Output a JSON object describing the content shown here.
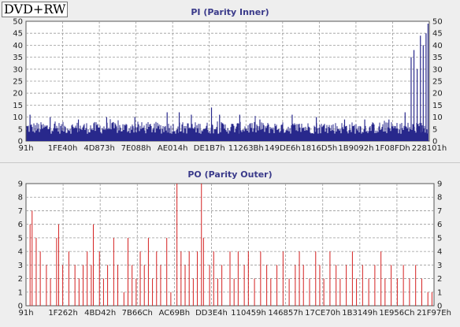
{
  "disc_label": "DVD+RW",
  "colors": {
    "pi": "#28288c",
    "po": "#d42020",
    "grid": "#9a9a9a",
    "plot_bg": "#ffffff"
  },
  "chart_data": [
    {
      "type": "bar",
      "title": "PI (Parity Inner)",
      "ylim": [
        0,
        50
      ],
      "yticks": [
        0,
        5,
        10,
        15,
        20,
        25,
        30,
        35,
        40,
        45,
        50
      ],
      "xtick_labels": [
        "91h",
        "1FE40h",
        "4D873h",
        "7E088h",
        "AE014h",
        "DE1B7h",
        "11263Bh",
        "149DE6h",
        "1816D5h",
        "1B9092h",
        "1F08FDh",
        "228101h"
      ],
      "grid": true,
      "baseline_range": [
        3,
        8
      ],
      "spikes": [
        {
          "pos": 0.01,
          "value": 11
        },
        {
          "pos": 0.06,
          "value": 10
        },
        {
          "pos": 0.13,
          "value": 9
        },
        {
          "pos": 0.2,
          "value": 10
        },
        {
          "pos": 0.27,
          "value": 10
        },
        {
          "pos": 0.35,
          "value": 12
        },
        {
          "pos": 0.38,
          "value": 12
        },
        {
          "pos": 0.41,
          "value": 11
        },
        {
          "pos": 0.46,
          "value": 14
        },
        {
          "pos": 0.48,
          "value": 11
        },
        {
          "pos": 0.53,
          "value": 11
        },
        {
          "pos": 0.58,
          "value": 9
        },
        {
          "pos": 0.66,
          "value": 11
        },
        {
          "pos": 0.72,
          "value": 10
        },
        {
          "pos": 0.79,
          "value": 9
        },
        {
          "pos": 0.84,
          "value": 9
        },
        {
          "pos": 0.9,
          "value": 9
        },
        {
          "pos": 0.94,
          "value": 12
        },
        {
          "pos": 0.955,
          "value": 35
        },
        {
          "pos": 0.962,
          "value": 38
        },
        {
          "pos": 0.97,
          "value": 30
        },
        {
          "pos": 0.978,
          "value": 44
        },
        {
          "pos": 0.985,
          "value": 40
        },
        {
          "pos": 0.992,
          "value": 45
        },
        {
          "pos": 0.997,
          "value": 49
        }
      ]
    },
    {
      "type": "bar",
      "title": "PO (Parity Outer)",
      "ylim": [
        0,
        9
      ],
      "yticks": [
        0,
        1,
        2,
        3,
        4,
        5,
        6,
        7,
        8,
        9
      ],
      "xtick_labels": [
        "91h",
        "1F262h",
        "4BD42h",
        "7B66Ch",
        "AC69Bh",
        "DD3E4h",
        "110459h",
        "146857h",
        "17CE70h",
        "1B3149h",
        "1E956Ch",
        "21F97Eh"
      ],
      "grid": true,
      "spikes": [
        {
          "pos": 0.01,
          "value": 6
        },
        {
          "pos": 0.015,
          "value": 7
        },
        {
          "pos": 0.025,
          "value": 5
        },
        {
          "pos": 0.035,
          "value": 4
        },
        {
          "pos": 0.05,
          "value": 3
        },
        {
          "pos": 0.06,
          "value": 2
        },
        {
          "pos": 0.075,
          "value": 5
        },
        {
          "pos": 0.08,
          "value": 6
        },
        {
          "pos": 0.09,
          "value": 3
        },
        {
          "pos": 0.105,
          "value": 4
        },
        {
          "pos": 0.12,
          "value": 3
        },
        {
          "pos": 0.13,
          "value": 2
        },
        {
          "pos": 0.14,
          "value": 3
        },
        {
          "pos": 0.15,
          "value": 4
        },
        {
          "pos": 0.16,
          "value": 3
        },
        {
          "pos": 0.165,
          "value": 6
        },
        {
          "pos": 0.18,
          "value": 4
        },
        {
          "pos": 0.19,
          "value": 2
        },
        {
          "pos": 0.2,
          "value": 3
        },
        {
          "pos": 0.215,
          "value": 5
        },
        {
          "pos": 0.225,
          "value": 3
        },
        {
          "pos": 0.24,
          "value": 1
        },
        {
          "pos": 0.25,
          "value": 5
        },
        {
          "pos": 0.26,
          "value": 3
        },
        {
          "pos": 0.27,
          "value": 2
        },
        {
          "pos": 0.28,
          "value": 4
        },
        {
          "pos": 0.29,
          "value": 3
        },
        {
          "pos": 0.3,
          "value": 5
        },
        {
          "pos": 0.31,
          "value": 2
        },
        {
          "pos": 0.32,
          "value": 4
        },
        {
          "pos": 0.33,
          "value": 3
        },
        {
          "pos": 0.345,
          "value": 5
        },
        {
          "pos": 0.355,
          "value": 1
        },
        {
          "pos": 0.37,
          "value": 9
        },
        {
          "pos": 0.38,
          "value": 4
        },
        {
          "pos": 0.39,
          "value": 3
        },
        {
          "pos": 0.4,
          "value": 4
        },
        {
          "pos": 0.41,
          "value": 2
        },
        {
          "pos": 0.42,
          "value": 4
        },
        {
          "pos": 0.43,
          "value": 9
        },
        {
          "pos": 0.435,
          "value": 5
        },
        {
          "pos": 0.45,
          "value": 3
        },
        {
          "pos": 0.46,
          "value": 4
        },
        {
          "pos": 0.47,
          "value": 2
        },
        {
          "pos": 0.48,
          "value": 3
        },
        {
          "pos": 0.5,
          "value": 4
        },
        {
          "pos": 0.51,
          "value": 2
        },
        {
          "pos": 0.52,
          "value": 4
        },
        {
          "pos": 0.535,
          "value": 3
        },
        {
          "pos": 0.545,
          "value": 4
        },
        {
          "pos": 0.56,
          "value": 2
        },
        {
          "pos": 0.575,
          "value": 4
        },
        {
          "pos": 0.59,
          "value": 3
        },
        {
          "pos": 0.6,
          "value": 2
        },
        {
          "pos": 0.615,
          "value": 3
        },
        {
          "pos": 0.63,
          "value": 4
        },
        {
          "pos": 0.645,
          "value": 2
        },
        {
          "pos": 0.66,
          "value": 3
        },
        {
          "pos": 0.67,
          "value": 4
        },
        {
          "pos": 0.68,
          "value": 3
        },
        {
          "pos": 0.695,
          "value": 2
        },
        {
          "pos": 0.71,
          "value": 4
        },
        {
          "pos": 0.72,
          "value": 3
        },
        {
          "pos": 0.73,
          "value": 2
        },
        {
          "pos": 0.745,
          "value": 4
        },
        {
          "pos": 0.76,
          "value": 3
        },
        {
          "pos": 0.77,
          "value": 2
        },
        {
          "pos": 0.785,
          "value": 3
        },
        {
          "pos": 0.8,
          "value": 4
        },
        {
          "pos": 0.81,
          "value": 2
        },
        {
          "pos": 0.825,
          "value": 3
        },
        {
          "pos": 0.84,
          "value": 2
        },
        {
          "pos": 0.855,
          "value": 3
        },
        {
          "pos": 0.87,
          "value": 4
        },
        {
          "pos": 0.88,
          "value": 2
        },
        {
          "pos": 0.895,
          "value": 3
        },
        {
          "pos": 0.91,
          "value": 2
        },
        {
          "pos": 0.925,
          "value": 3
        },
        {
          "pos": 0.94,
          "value": 2
        },
        {
          "pos": 0.955,
          "value": 3
        },
        {
          "pos": 0.97,
          "value": 2
        },
        {
          "pos": 0.985,
          "value": 1
        },
        {
          "pos": 0.995,
          "value": 1
        }
      ]
    }
  ]
}
